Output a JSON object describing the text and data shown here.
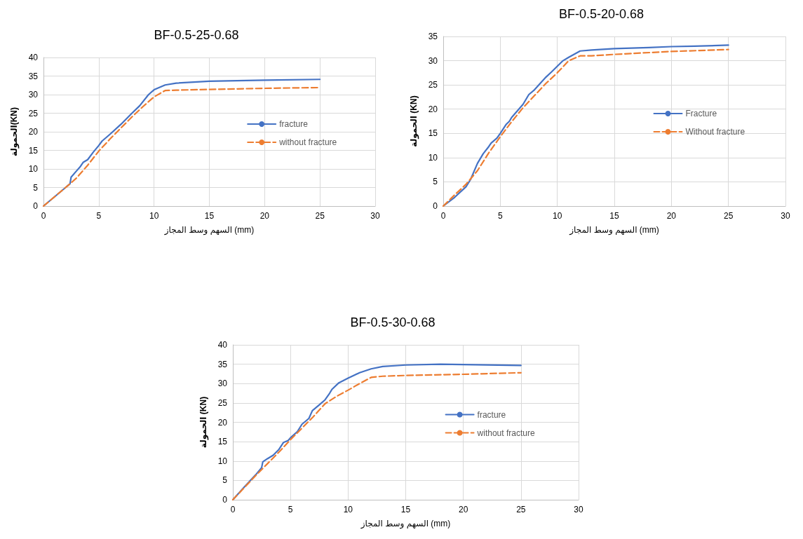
{
  "chart_data": [
    {
      "type": "line",
      "title": "BF-0.5-25-0.68",
      "xlabel": "السهم وسط المجاز (mm)",
      "ylabel": "الحمولة(KN)",
      "xlim": [
        0,
        30
      ],
      "xticks": [
        0,
        5,
        10,
        15,
        20,
        25,
        30
      ],
      "ylim": [
        0,
        40
      ],
      "yticks": [
        0,
        5,
        10,
        15,
        20,
        25,
        30,
        35,
        40
      ],
      "grid": true,
      "legend": "right",
      "marker": "none",
      "series": [
        {
          "name": "fracture",
          "color": "#4472c4",
          "line_style": "solid",
          "x": [
            0,
            1,
            2,
            2.4,
            2.5,
            3,
            3.3,
            3.6,
            4,
            4.5,
            5,
            5.3,
            6,
            7,
            8,
            8.7,
            9.5,
            10,
            11,
            12,
            15,
            20,
            25
          ],
          "values": [
            0,
            2.5,
            5,
            6,
            7.8,
            9.5,
            10.5,
            11.8,
            12.5,
            14.5,
            16.3,
            17.5,
            19.3,
            22,
            25,
            27,
            30,
            31.3,
            32.6,
            33.1,
            33.6,
            33.9,
            34.1
          ]
        },
        {
          "name": "without fracture",
          "color": "#ed7d31",
          "line_style": "dashed",
          "x": [
            0,
            2.4,
            3,
            4,
            5,
            6,
            7,
            8,
            9,
            10,
            11,
            12,
            15,
            20,
            25
          ],
          "values": [
            0,
            6,
            7.6,
            11,
            14.8,
            18,
            21,
            24,
            26.8,
            29.4,
            31.1,
            31.2,
            31.4,
            31.7,
            31.9
          ]
        }
      ]
    },
    {
      "type": "line",
      "title": "BF-0.5-20-0.68",
      "xlabel": "السهم وسط المجاز (mm)",
      "ylabel": "الحمولة (KN)",
      "xlim": [
        0,
        30
      ],
      "xticks": [
        0,
        5,
        10,
        15,
        20,
        25,
        30
      ],
      "ylim": [
        0,
        35
      ],
      "yticks": [
        0,
        5,
        10,
        15,
        20,
        25,
        30,
        35
      ],
      "grid": true,
      "legend": "right",
      "marker": "none",
      "series": [
        {
          "name": "Fracture",
          "color": "#4472c4",
          "line_style": "solid",
          "x": [
            0,
            1,
            2,
            2.4,
            3,
            3.5,
            4,
            4.2,
            4.7,
            5,
            5.5,
            5.8,
            6,
            7,
            7.5,
            8,
            9,
            9.5,
            10.5,
            11,
            12,
            13,
            15,
            18,
            20,
            22,
            25
          ],
          "values": [
            0,
            1.8,
            4,
            5.5,
            8.8,
            10.8,
            12.3,
            13,
            14,
            15,
            16.8,
            17.5,
            18.3,
            21,
            23,
            24,
            26.6,
            27.7,
            30,
            30.7,
            32,
            32.2,
            32.5,
            32.7,
            32.9,
            33,
            33.2
          ]
        },
        {
          "name": "Without fracture",
          "color": "#ed7d31",
          "line_style": "dashed",
          "x": [
            0,
            1,
            2,
            3,
            4,
            5,
            6,
            7,
            8,
            9,
            10,
            11,
            12,
            13,
            15,
            20,
            25
          ],
          "values": [
            0,
            2.3,
            4.5,
            7.3,
            11,
            14.3,
            17.4,
            20.3,
            22.8,
            25.3,
            27.5,
            30,
            31,
            31,
            31.3,
            31.9,
            32.3
          ]
        }
      ]
    },
    {
      "type": "line",
      "title": "BF-0.5-30-0.68",
      "xlabel": "السهم وسط المجاز (mm)",
      "ylabel": "الحمولة (KN)",
      "xlim": [
        0,
        30
      ],
      "xticks": [
        0,
        5,
        10,
        15,
        20,
        25,
        30
      ],
      "ylim": [
        0,
        40
      ],
      "yticks": [
        0,
        5,
        10,
        15,
        20,
        25,
        30,
        35,
        40
      ],
      "grid": true,
      "legend": "right",
      "marker": "none",
      "series": [
        {
          "name": "fracture",
          "color": "#4472c4",
          "line_style": "solid",
          "x": [
            0,
            1,
            2,
            2.5,
            2.6,
            3,
            3.5,
            4,
            4.4,
            4.8,
            5,
            5.6,
            6,
            6.6,
            6.9,
            7.5,
            8,
            8.4,
            8.6,
            9.2,
            10,
            11,
            12,
            13,
            15,
            18,
            20,
            25
          ],
          "values": [
            0,
            3.3,
            6.5,
            8.3,
            9.8,
            10.6,
            11.5,
            13,
            14.8,
            15.3,
            16,
            17.6,
            19.5,
            21,
            23,
            24.5,
            25.8,
            27.5,
            28.5,
            30.2,
            31.4,
            32.8,
            33.8,
            34.4,
            34.8,
            35,
            34.9,
            34.7
          ]
        },
        {
          "name": "without fracture",
          "color": "#ed7d31",
          "line_style": "dashed",
          "x": [
            0,
            2,
            3,
            4,
            5,
            6,
            7,
            8,
            9,
            10,
            11,
            12,
            13,
            15,
            20,
            25
          ],
          "values": [
            0,
            6.3,
            9.3,
            12.3,
            15.5,
            18.5,
            21.5,
            24.8,
            26.7,
            28.3,
            30,
            31.6,
            31.9,
            32.1,
            32.4,
            32.8
          ]
        }
      ]
    }
  ]
}
